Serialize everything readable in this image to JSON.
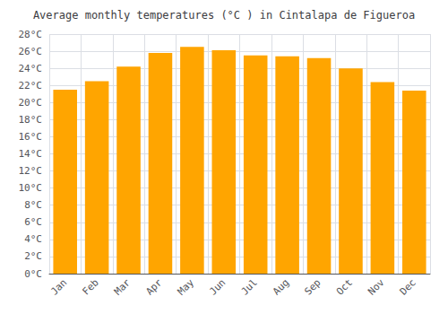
{
  "chart_data": {
    "type": "bar",
    "title": "Average monthly temperatures (°C ) in Cintalapa de Figueroa",
    "categories": [
      "Jan",
      "Feb",
      "Mar",
      "Apr",
      "May",
      "Jun",
      "Jul",
      "Aug",
      "Sep",
      "Oct",
      "Nov",
      "Dec"
    ],
    "values": [
      21.5,
      22.5,
      24.2,
      25.8,
      26.5,
      26.1,
      25.5,
      25.4,
      25.2,
      24.0,
      22.4,
      21.4
    ],
    "color": "#FFA500",
    "ylim": [
      0,
      28
    ],
    "yticks": [
      {
        "value": 0,
        "label": "0°C"
      },
      {
        "value": 2,
        "label": "2°C"
      },
      {
        "value": 4,
        "label": "4°C"
      },
      {
        "value": 6,
        "label": "6°C"
      },
      {
        "value": 8,
        "label": "8°C"
      },
      {
        "value": 10,
        "label": "10°C"
      },
      {
        "value": 12,
        "label": "12°C"
      },
      {
        "value": 14,
        "label": "14°C"
      },
      {
        "value": 16,
        "label": "16°C"
      },
      {
        "value": 18,
        "label": "18°C"
      },
      {
        "value": 20,
        "label": "20°C"
      },
      {
        "value": 22,
        "label": "22°C"
      },
      {
        "value": 24,
        "label": "24°C"
      },
      {
        "value": 26,
        "label": "26°C"
      },
      {
        "value": 28,
        "label": "28°C"
      }
    ],
    "grid": true
  }
}
